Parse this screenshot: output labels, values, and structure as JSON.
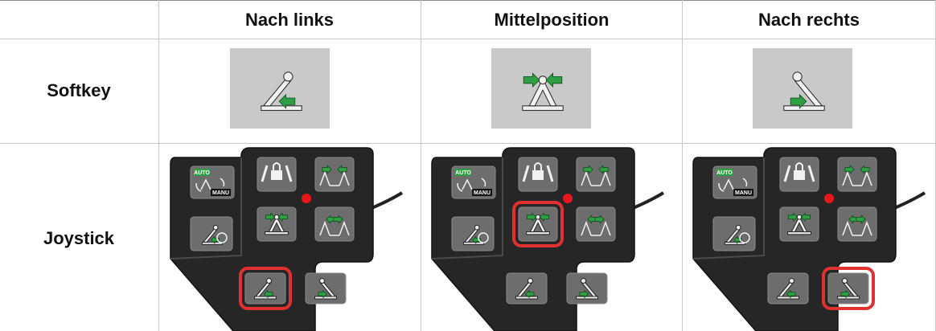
{
  "header": [
    "Nach links",
    "Mittelposition",
    "Nach rechts"
  ],
  "rows": [
    {
      "label": "Softkey"
    },
    {
      "label": "Joystick"
    }
  ],
  "joystick_labels": {
    "auto": "AUTO",
    "manu": "MANU"
  }
}
